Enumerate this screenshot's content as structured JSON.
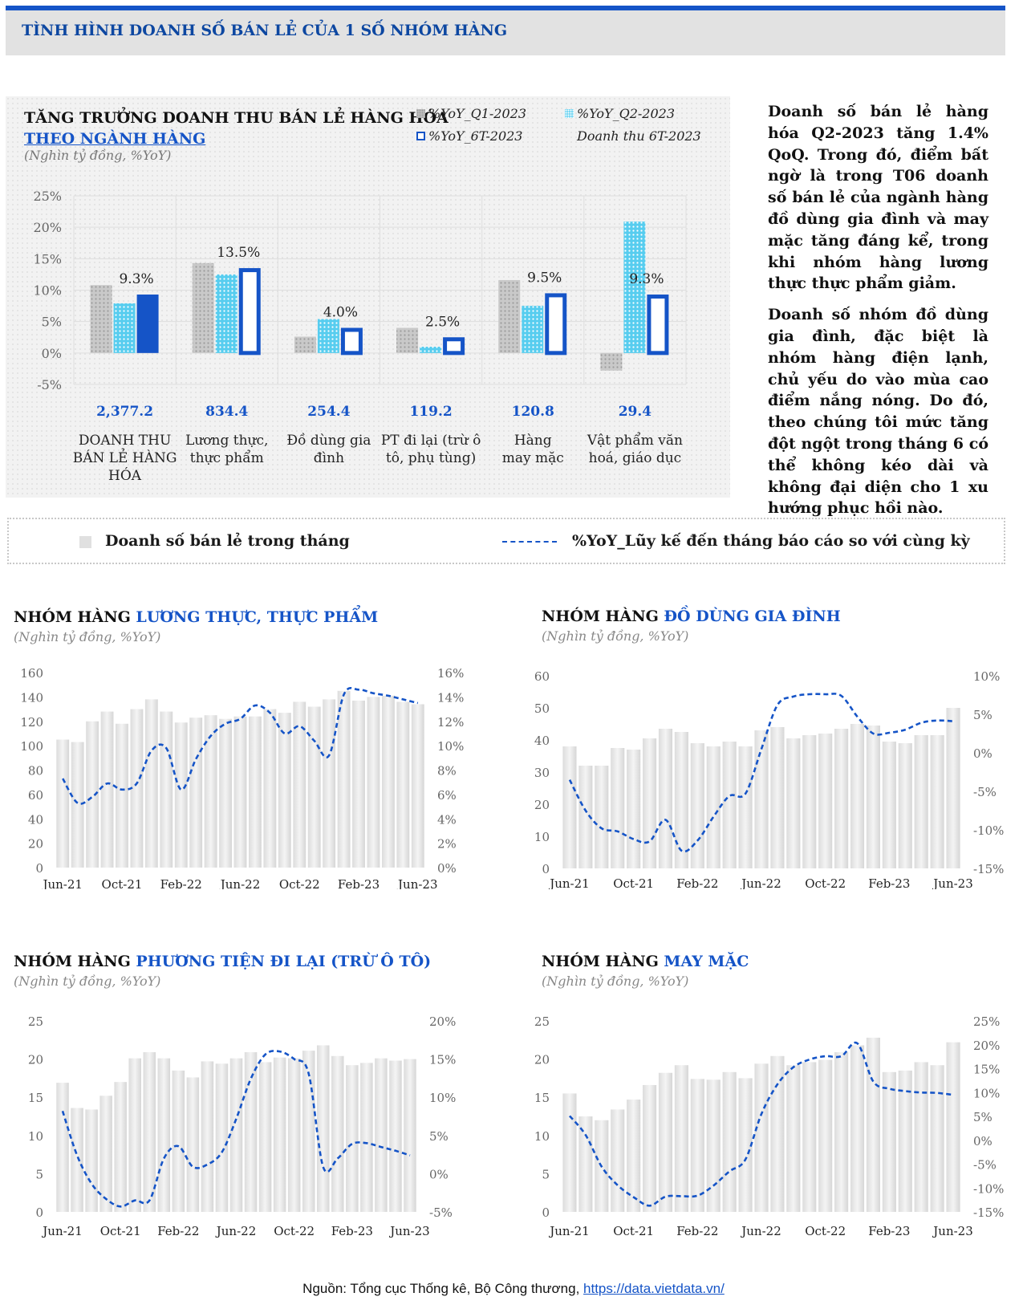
{
  "header": {
    "title": "TÌNH HÌNH DOANH SỐ BÁN LẺ CỦA 1 SỐ NHÓM HÀNG"
  },
  "panel": {
    "title_line1": "TĂNG TRƯỞNG DOANH THU BÁN LẺ  HÀNG HÓA",
    "title_line2": "THEO NGÀNH HÀNG",
    "unit": "(Nghìn tỷ đồng, %YoY)",
    "legend": {
      "q1": "%YoY_Q1-2023",
      "q2": "%YoY_Q2-2023",
      "h1": "%YoY_6T-2023",
      "rev": "Doanh thu 6T-2023"
    }
  },
  "side_text": {
    "p1": "Doanh số bán lẻ hàng hóa Q2-2023 tăng 1.4% QoQ. Trong đó, điểm bất ngờ là trong T06 doanh số bán lẻ của ngành hàng đồ dùng gia đình và may mặc tăng đáng kể, trong khi nhóm hàng lương thực thực phẩm giảm.",
    "p2": "Doanh số nhóm đồ dùng gia đình, đặc biệt là nhóm hàng điện lạnh, chủ yếu do vào mùa cao điểm nắng nóng. Do đó, theo chúng tôi mức tăng đột ngột trong tháng 6 có thể không kéo dài và không đại diện cho 1 xu hướng phục hồi nào."
  },
  "legend_bar": {
    "bars": "Doanh số bán lẻ trong tháng",
    "line": "%YoY_Lũy kế đến tháng báo cáo so với cùng kỳ"
  },
  "colors": {
    "accent": "#1554c7",
    "q1": "#c4c4c4",
    "q2": "#5ccff0",
    "h1": "#1554c7",
    "bar_gray": "#e3e3e3"
  },
  "chart_data": [
    {
      "type": "bar",
      "title": "TĂNG TRƯỞNG DOANH THU BÁN LẺ  HÀNG HÓA THEO NGÀNH HÀNG",
      "ylim": [
        -5,
        25
      ],
      "yticks": [
        "-5%",
        "0%",
        "5%",
        "10%",
        "15%",
        "20%",
        "25%"
      ],
      "categories": [
        [
          "DOANH THU",
          "BÁN LẺ HÀNG",
          "HÓA"
        ],
        [
          "Lương thực,",
          "thực phẩm"
        ],
        [
          "Đồ dùng gia",
          "đình"
        ],
        [
          "PT đi lại (trừ ô",
          "tô, phụ tùng)"
        ],
        [
          "Hàng",
          "may mặc"
        ],
        [
          "Vật phẩm văn",
          "hoá, giáo dục"
        ]
      ],
      "series": [
        {
          "name": "%YoY_Q1-2023",
          "values": [
            10.8,
            14.3,
            2.6,
            4.0,
            11.6,
            -2.8
          ]
        },
        {
          "name": "%YoY_Q2-2023",
          "values": [
            7.9,
            12.5,
            5.4,
            1.0,
            7.5,
            20.9
          ]
        },
        {
          "name": "%YoY_6T-2023",
          "values": [
            9.3,
            13.5,
            4.0,
            2.5,
            9.5,
            9.3
          ],
          "labels": [
            "9.3%",
            "13.5%",
            "4.0%",
            "2.5%",
            "9.5%",
            "9.3%"
          ]
        }
      ],
      "revenue_6T_2023": [
        "2,377.2",
        "834.4",
        "254.4",
        "119.2",
        "120.8",
        "29.4"
      ]
    },
    {
      "type": "bar",
      "title_prefix": "NHÓM HÀNG ",
      "title_highlight": "LƯƠNG THỰC, THỰC PHẨM",
      "unit": "(Nghìn tỷ đồng, %YoY)",
      "x_ticks": [
        "Jun-21",
        "Oct-21",
        "Feb-22",
        "Jun-22",
        "Oct-22",
        "Feb-23",
        "Jun-23"
      ],
      "ylim": [
        0,
        160
      ],
      "yticks": [
        "0",
        "20",
        "40",
        "60",
        "80",
        "100",
        "120",
        "140",
        "160"
      ],
      "y2lim": [
        0,
        16
      ],
      "y2ticks": [
        "0%",
        "2%",
        "4%",
        "6%",
        "8%",
        "10%",
        "12%",
        "14%",
        "16%"
      ],
      "bars": [
        105,
        103,
        120,
        128,
        118,
        130,
        138,
        128,
        119,
        123,
        125,
        122,
        124,
        124,
        130,
        127,
        136,
        132,
        138,
        145,
        137,
        140,
        141,
        136,
        134
      ],
      "line": [
        7.3,
        5.3,
        5.8,
        6.9,
        6.4,
        6.9,
        9.6,
        9.8,
        6.4,
        8.9,
        10.8,
        11.8,
        12.2,
        13.3,
        12.7,
        11.0,
        11.6,
        10.4,
        9.2,
        14.2,
        14.6,
        14.3,
        14.1,
        13.8,
        13.5
      ]
    },
    {
      "type": "bar",
      "title_prefix": "NHÓM HÀNG ",
      "title_highlight": "ĐỒ DÙNG GIA ĐÌNH",
      "unit": "(Nghìn tỷ đồng, %YoY)",
      "x_ticks": [
        "Jun-21",
        "Oct-21",
        "Feb-22",
        "Jun-22",
        "Oct-22",
        "Feb-23",
        "Jun-23"
      ],
      "ylim": [
        0,
        60
      ],
      "yticks": [
        "0",
        "10",
        "20",
        "30",
        "40",
        "50",
        "60"
      ],
      "y2lim": [
        -15,
        10
      ],
      "y2ticks": [
        "-15%",
        "-10%",
        "-5%",
        "0%",
        "5%",
        "10%"
      ],
      "bars": [
        38,
        32,
        32,
        37.5,
        37,
        40.5,
        43.5,
        42.5,
        39,
        38,
        39.5,
        38,
        43,
        44,
        40.5,
        41.5,
        42,
        43.5,
        45,
        44.5,
        39.5,
        39,
        41.5,
        41.5,
        50
      ],
      "line": [
        -3.5,
        -7.5,
        -9.8,
        -10.2,
        -11.2,
        -11.5,
        -8.7,
        -12.7,
        -11.4,
        -8.3,
        -5.6,
        -5.3,
        0.5,
        6.2,
        7.3,
        7.6,
        7.6,
        7.4,
        4.7,
        2.5,
        2.6,
        3.0,
        3.9,
        4.2,
        4.1
      ]
    },
    {
      "type": "bar",
      "title_prefix": "NHÓM HÀNG ",
      "title_highlight": "PHƯƠNG TIỆN ĐI LẠI (TRỪ Ô TÔ)",
      "unit": "(Nghìn tỷ đồng, %YoY)",
      "x_ticks": [
        "Jun-21",
        "Oct-21",
        "Feb-22",
        "Jun-22",
        "Oct-22",
        "Feb-23",
        "Jun-23"
      ],
      "ylim": [
        0,
        25
      ],
      "yticks": [
        "0",
        "5",
        "10",
        "15",
        "20",
        "25"
      ],
      "y2lim": [
        -5,
        20
      ],
      "y2ticks": [
        "-5%",
        "0%",
        "5%",
        "10%",
        "15%",
        "20%"
      ],
      "bars": [
        16.9,
        13.6,
        13.4,
        15.2,
        17.0,
        20.1,
        20.9,
        20.1,
        18.5,
        17.6,
        19.7,
        19.4,
        20.1,
        20.9,
        19.6,
        20.2,
        20.1,
        21.1,
        21.8,
        20.4,
        19.2,
        19.5,
        20.1,
        19.8,
        20.0
      ],
      "line": [
        8.2,
        2.4,
        -1.3,
        -3.3,
        -4.3,
        -3.5,
        -3.5,
        2.0,
        3.6,
        0.9,
        1.2,
        2.8,
        7.2,
        12.4,
        15.6,
        16.0,
        15.0,
        13.1,
        0.9,
        2.0,
        3.9,
        4.0,
        3.5,
        3.0,
        2.4
      ]
    },
    {
      "type": "bar",
      "title_prefix": "NHÓM HÀNG ",
      "title_highlight": "MAY MẶC",
      "unit": "(Nghìn tỷ đồng, %YoY)",
      "x_ticks": [
        "Jun-21",
        "Oct-21",
        "Feb-22",
        "Jun-22",
        "Oct-22",
        "Feb-23",
        "Jun-23"
      ],
      "ylim": [
        0,
        25
      ],
      "yticks": [
        "0",
        "5",
        "10",
        "15",
        "20",
        "25"
      ],
      "y2lim": [
        -15,
        25
      ],
      "y2ticks": [
        "-15%",
        "-10%",
        "-5%",
        "0%",
        "5%",
        "10%",
        "15%",
        "20%",
        "25%"
      ],
      "bars": [
        15.5,
        12.5,
        12.0,
        13.4,
        14.7,
        16.6,
        18.2,
        19.2,
        17.4,
        17.3,
        18.3,
        17.5,
        19.4,
        20.4,
        19.2,
        19.6,
        19.9,
        20.9,
        21.8,
        22.8,
        18.3,
        18.5,
        19.6,
        19.2,
        22.2
      ],
      "line": [
        5.1,
        1.1,
        -5.5,
        -9.4,
        -11.9,
        -13.7,
        -11.8,
        -11.7,
        -11.6,
        -9.5,
        -6.5,
        -4.0,
        5.5,
        11.7,
        15.3,
        16.9,
        17.6,
        17.6,
        20.3,
        12.3,
        10.8,
        10.3,
        10.0,
        9.9,
        9.5
      ]
    }
  ],
  "source": {
    "text": "Nguồn: Tổng cục Thống kê, Bộ Công thương, ",
    "link": "https://data.vietdata.vn/"
  }
}
